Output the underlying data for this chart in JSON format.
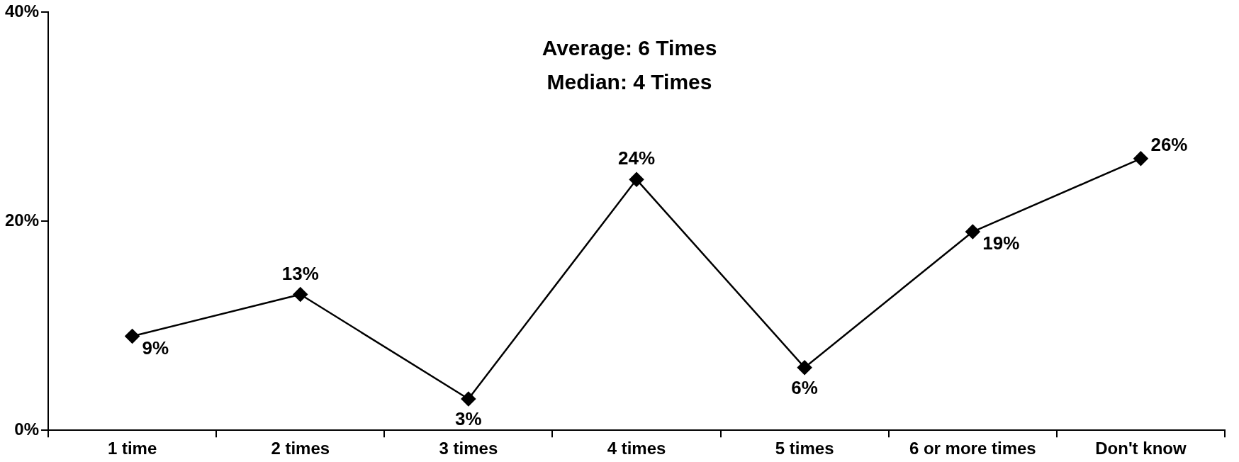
{
  "chart_data": {
    "type": "line",
    "categories": [
      "1 time",
      "2 times",
      "3 times",
      "4 times",
      "5 times",
      "6 or more times",
      "Don't know"
    ],
    "series": [
      {
        "color": "#000000",
        "values": [
          9,
          13,
          3,
          24,
          6,
          19,
          26
        ],
        "value_labels": [
          "9%",
          "13%",
          "3%",
          "24%",
          "6%",
          "19%",
          "26%"
        ]
      }
    ],
    "ylim": [
      0,
      40
    ],
    "yticks": [
      {
        "value": 0,
        "label": "0%"
      },
      {
        "value": 20,
        "label": "20%"
      },
      {
        "value": 40,
        "label": "40%"
      }
    ],
    "annotations": [
      "Average: 6 Times",
      "Median: 4 Times"
    ],
    "marker": "diamond",
    "line_style": "solid",
    "grid": false,
    "legend": false
  }
}
